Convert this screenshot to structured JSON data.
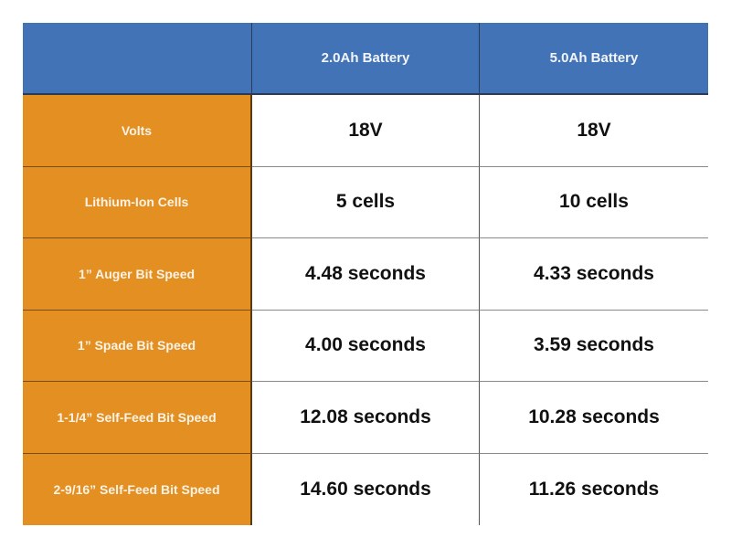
{
  "table": {
    "header": {
      "corner": "",
      "columns": [
        "2.0Ah Battery",
        "5.0Ah Battery"
      ]
    },
    "rows": [
      {
        "label": "Volts",
        "values": [
          "18V",
          "18V"
        ]
      },
      {
        "label": "Lithium-Ion Cells",
        "values": [
          "5 cells",
          "10 cells"
        ]
      },
      {
        "label": "1” Auger Bit Speed",
        "values": [
          "4.48 seconds",
          "4.33 seconds"
        ]
      },
      {
        "label": "1” Spade Bit Speed",
        "values": [
          "4.00 seconds",
          "3.59 seconds"
        ]
      },
      {
        "label": "1-1/4” Self-Feed Bit Speed",
        "values": [
          "12.08 seconds",
          "10.28 seconds"
        ]
      },
      {
        "label": "2-9/16” Self-Feed Bit Speed",
        "values": [
          "14.60 seconds",
          "11.26 seconds"
        ]
      }
    ]
  },
  "colors": {
    "header_bg": "#4273b6",
    "label_bg": "#e38f22",
    "value_bg": "#ffffff",
    "value_text": "#111111"
  }
}
